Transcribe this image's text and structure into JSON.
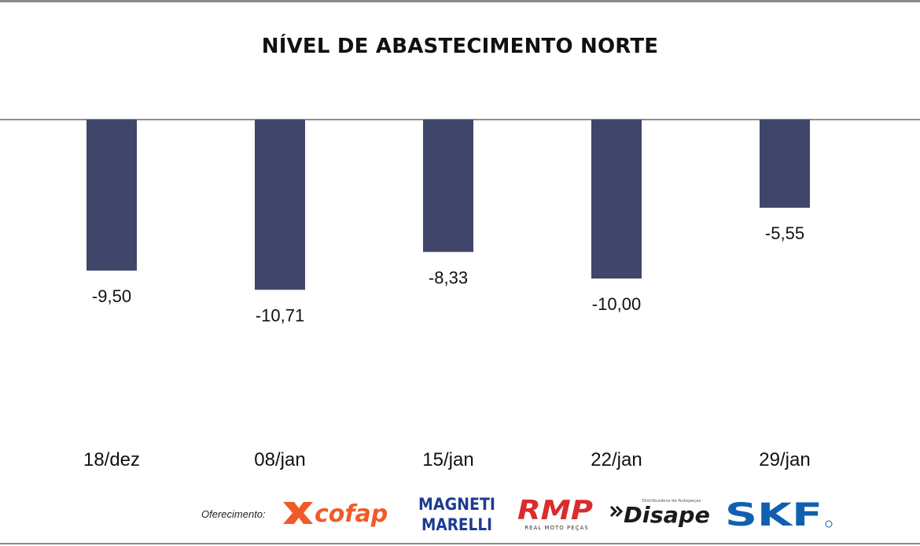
{
  "chart_data": {
    "type": "bar",
    "title": "NÍVEL DE ABASTECIMENTO NORTE",
    "categories": [
      "18/dez",
      "08/jan",
      "15/jan",
      "22/jan",
      "29/jan"
    ],
    "values": [
      -9.5,
      -10.71,
      -8.33,
      -10.0,
      -5.55
    ],
    "value_labels": [
      "-9,50",
      "-10,71",
      "-8,33",
      "-10,00",
      "-5,55"
    ],
    "xlabel": "",
    "ylabel": "",
    "ylim": [
      -25,
      0
    ],
    "grid": false,
    "bar_color": "#3f4669"
  },
  "sponsors": {
    "label": "Oferecimento:",
    "logos": {
      "cofap": "cofap",
      "marelli_top": "MAGNETI",
      "marelli_bottom": "MARELLI",
      "rmp": "RMP",
      "rmp_sub": "REAL MOTO PEÇAS",
      "disape": "Disape",
      "disape_sub": "Distribuidora de Autopeças",
      "skf": "SKF"
    }
  },
  "colors": {
    "cofap": "#f05a28",
    "marelli": "#1d3c8f",
    "rmp": "#d92d2d",
    "disape": "#1b1b1b",
    "skf": "#1060b0"
  }
}
